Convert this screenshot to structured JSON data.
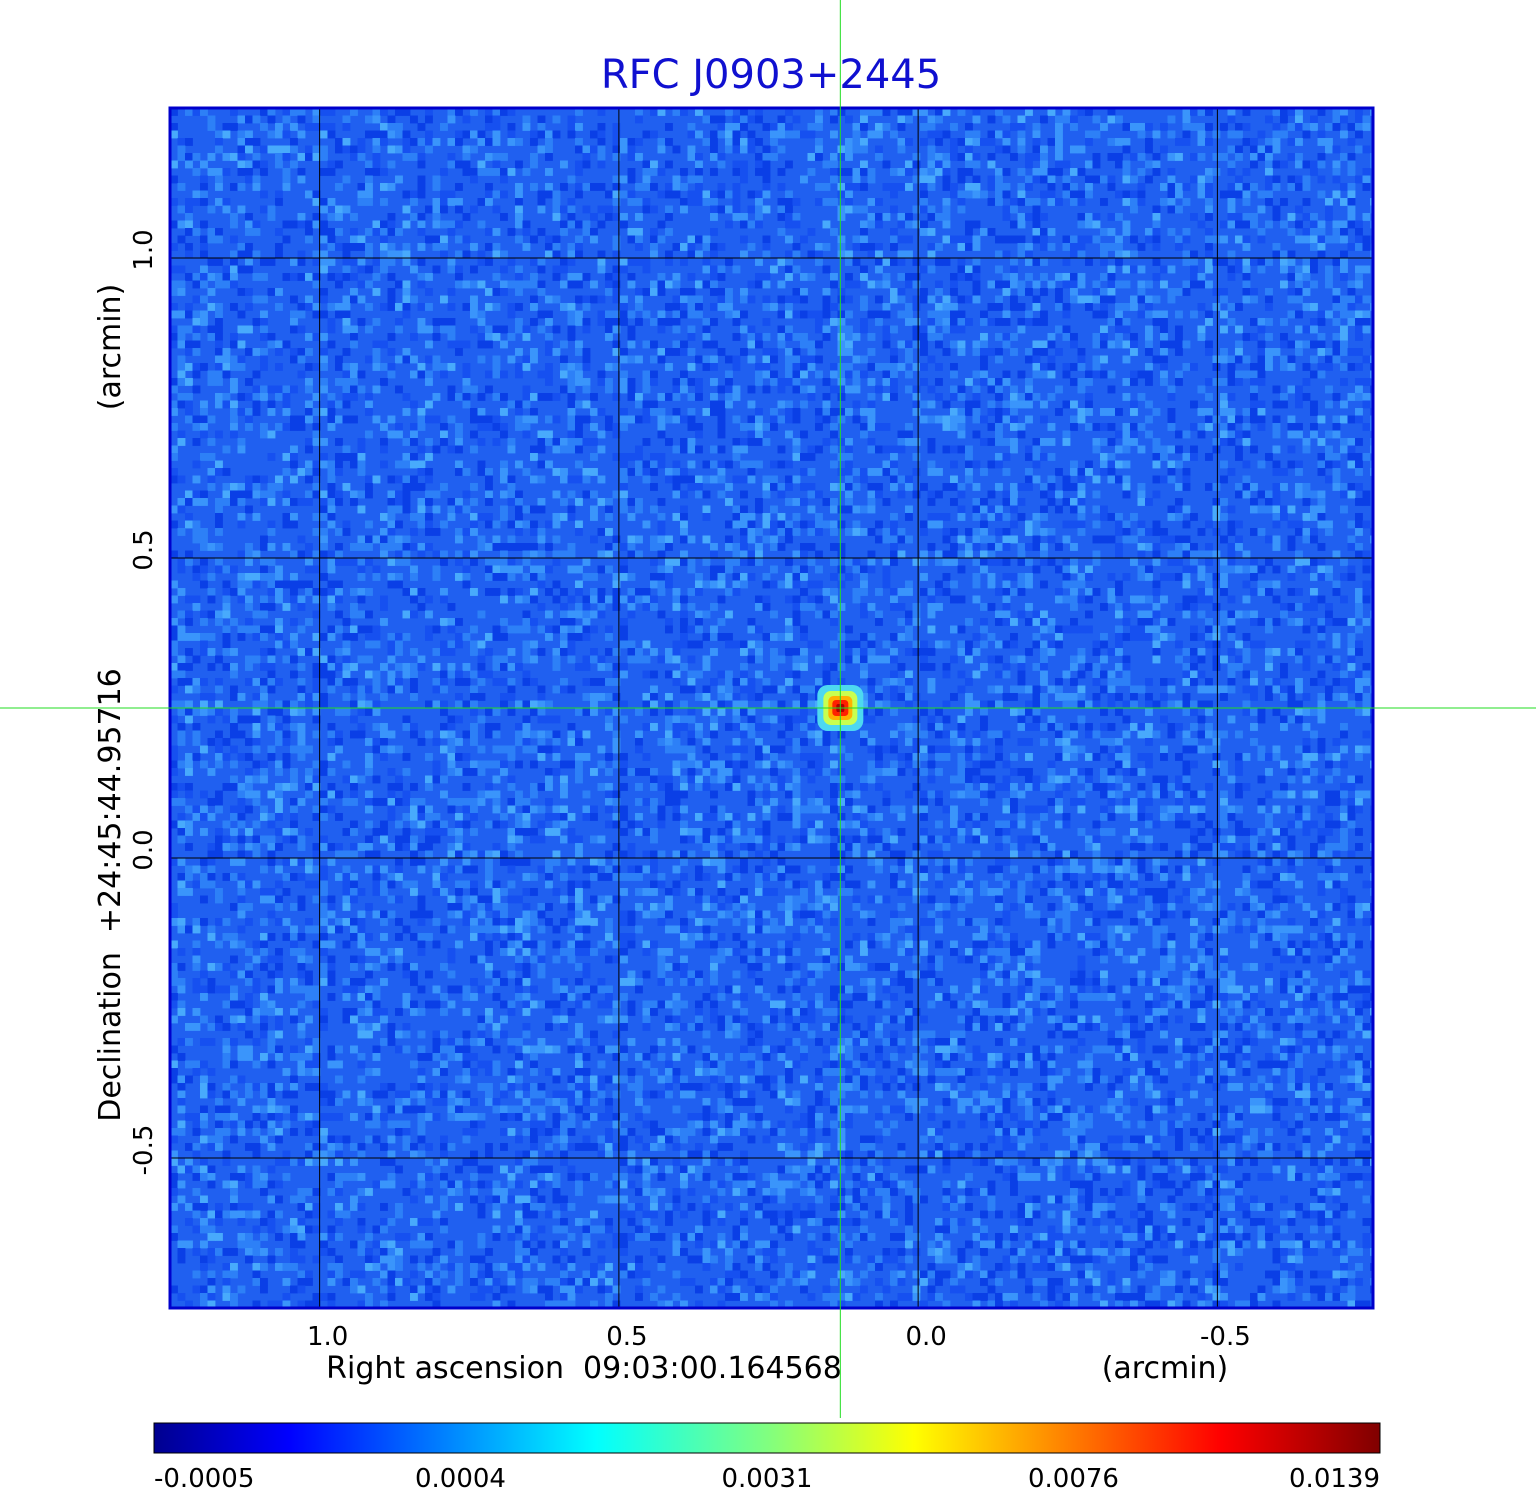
{
  "chart_data": {
    "type": "heatmap",
    "title": "RFC J0903+2445",
    "xlabel": "Right ascension  09:03:00.164568",
    "xunit": "(arcmin)",
    "ylabel": "Declination  +24:45:44.95716",
    "yunit": "(arcmin)",
    "xlim": [
      1.25,
      -0.76
    ],
    "ylim": [
      -0.75,
      1.25
    ],
    "xticks": [
      1.0,
      0.5,
      0.0,
      -0.5
    ],
    "xtick_labels": [
      "1.0",
      "0.5",
      "0.0",
      "-0.5"
    ],
    "yticks": [
      -0.5,
      0.0,
      0.5,
      1.0
    ],
    "ytick_labels": [
      "-0.5",
      "0.0",
      "0.5",
      "1.0"
    ],
    "grid": true,
    "source": {
      "x": 0.13,
      "y": 0.25,
      "peak": 0.0139
    },
    "crosshair": {
      "x": 0.13,
      "y": 0.25,
      "color": "#22dd22"
    },
    "colorbar": {
      "position": "bottom",
      "colormap": "jet",
      "ticks": [
        -0.0005,
        0.0004,
        0.0031,
        0.0076,
        0.0139
      ],
      "tick_labels": [
        "-0.0005",
        "0.0004",
        "0.0031",
        "0.0076",
        "0.0139"
      ]
    },
    "background_color": "#2060f0"
  }
}
